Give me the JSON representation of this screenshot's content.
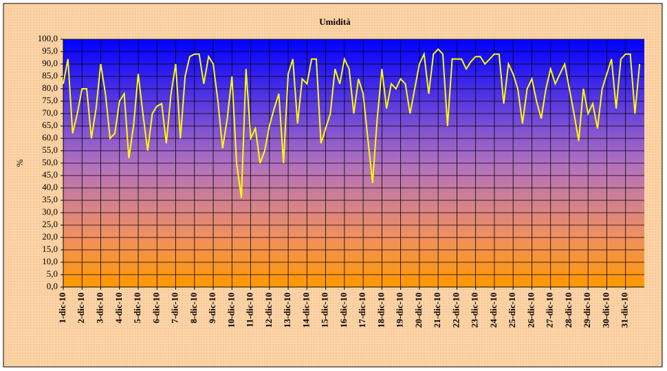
{
  "chart_data": {
    "type": "line",
    "title": "Umidità",
    "y_label": "%",
    "categories": [
      "1-dic-10",
      null,
      null,
      null,
      "2-dic-10",
      null,
      null,
      null,
      "3-dic-10",
      null,
      null,
      null,
      "4-dic-10",
      null,
      null,
      null,
      "5-dic-10",
      null,
      null,
      null,
      "6-dic-10",
      null,
      null,
      null,
      "7-dic-10",
      null,
      null,
      null,
      "8-dic-10",
      null,
      null,
      null,
      "9-dic-10",
      null,
      null,
      null,
      "10-dic-10",
      null,
      null,
      null,
      "11-dic-10",
      null,
      null,
      null,
      "12-dic-10",
      null,
      null,
      null,
      "13-dic-10",
      null,
      null,
      null,
      "14-dic-10",
      null,
      null,
      null,
      "15-dic-10",
      null,
      null,
      null,
      "16-dic-10",
      null,
      null,
      null,
      "17-dic-10",
      null,
      null,
      null,
      "18-dic-10",
      null,
      null,
      null,
      "19-dic-10",
      null,
      null,
      null,
      "20-dic-10",
      null,
      null,
      null,
      "21-dic-10",
      null,
      null,
      null,
      "22-dic-10",
      null,
      null,
      null,
      "23-dic-10",
      null,
      null,
      null,
      "24-dic-10",
      null,
      null,
      null,
      "25-dic-10",
      null,
      null,
      null,
      "26-dic-10",
      null,
      null,
      null,
      "27-dic-10",
      null,
      null,
      null,
      "28-dic-10",
      null,
      null,
      null,
      "29-dic-10",
      null,
      null,
      null,
      "30-dic-10",
      null,
      null,
      null,
      "31-dic-10",
      null,
      null,
      null
    ],
    "values": [
      82,
      92,
      62,
      70,
      80,
      80,
      60,
      72,
      90,
      78,
      60,
      62,
      75,
      78,
      52,
      65,
      86,
      70,
      55,
      70,
      73,
      74,
      58,
      78,
      90,
      60,
      85,
      93,
      94,
      94,
      82,
      93,
      90,
      75,
      56,
      68,
      85,
      50,
      36,
      88,
      60,
      64,
      50,
      55,
      65,
      72,
      78,
      50,
      86,
      92,
      66,
      84,
      82,
      92,
      92,
      58,
      64,
      70,
      88,
      82,
      92,
      88,
      70,
      84,
      78,
      60,
      42,
      68,
      88,
      72,
      82,
      80,
      84,
      82,
      70,
      80,
      90,
      94,
      78,
      94,
      96,
      94,
      65,
      92,
      92,
      92,
      88,
      91,
      93,
      93,
      90,
      92,
      94,
      94,
      74,
      90,
      86,
      80,
      66,
      80,
      84,
      75,
      68,
      80,
      88,
      82,
      86,
      90,
      80,
      70,
      59,
      80,
      70,
      74,
      64,
      80,
      86,
      92,
      72,
      92,
      94,
      94,
      70,
      90
    ],
    "color": "#ffff00",
    "ylim": [
      0,
      100
    ],
    "yticks": [
      {
        "value": 0,
        "label": "0,0"
      },
      {
        "value": 5,
        "label": "5,0"
      },
      {
        "value": 10,
        "label": "10,0"
      },
      {
        "value": 15,
        "label": "15,0"
      },
      {
        "value": 20,
        "label": "20,0"
      },
      {
        "value": 25,
        "label": "25,0"
      },
      {
        "value": 30,
        "label": "30,0"
      },
      {
        "value": 35,
        "label": "35,0"
      },
      {
        "value": 40,
        "label": "40,0"
      },
      {
        "value": 45,
        "label": "45,0"
      },
      {
        "value": 50,
        "label": "50,0"
      },
      {
        "value": 55,
        "label": "55,0"
      },
      {
        "value": 60,
        "label": "60,0"
      },
      {
        "value": 65,
        "label": "65,0"
      },
      {
        "value": 70,
        "label": "70,0"
      },
      {
        "value": 75,
        "label": "75,0"
      },
      {
        "value": 80,
        "label": "80,0"
      },
      {
        "value": 85,
        "label": "85,0"
      },
      {
        "value": 90,
        "label": "90,0"
      },
      {
        "value": 95,
        "label": "95,0"
      },
      {
        "value": 100,
        "label": "100,0"
      }
    ],
    "grid": true
  }
}
